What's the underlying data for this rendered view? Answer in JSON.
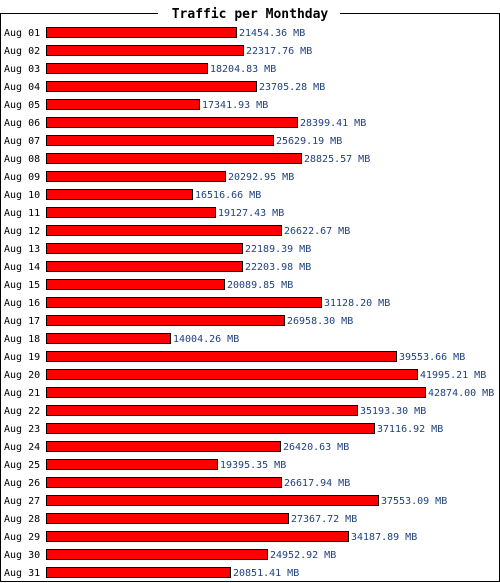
{
  "chart_data": {
    "type": "bar",
    "orientation": "horizontal",
    "title": "Traffic per Monthday",
    "unit": "MB",
    "bar_color": "#ff0000",
    "label_color": "#1f3f7f",
    "xlim": [
      0,
      42874.0
    ],
    "categories": [
      "Aug 01",
      "Aug 02",
      "Aug 03",
      "Aug 04",
      "Aug 05",
      "Aug 06",
      "Aug 07",
      "Aug 08",
      "Aug 09",
      "Aug 10",
      "Aug 11",
      "Aug 12",
      "Aug 13",
      "Aug 14",
      "Aug 15",
      "Aug 16",
      "Aug 17",
      "Aug 18",
      "Aug 19",
      "Aug 20",
      "Aug 21",
      "Aug 22",
      "Aug 23",
      "Aug 24",
      "Aug 25",
      "Aug 26",
      "Aug 27",
      "Aug 28",
      "Aug 29",
      "Aug 30",
      "Aug 31"
    ],
    "values": [
      21454.36,
      22317.76,
      18204.83,
      23705.28,
      17341.93,
      28399.41,
      25629.19,
      28825.57,
      20292.95,
      16516.66,
      19127.43,
      26622.67,
      22189.39,
      22203.98,
      20089.85,
      31128.2,
      26958.3,
      14004.26,
      39553.66,
      41995.21,
      42874.0,
      35193.3,
      37116.92,
      26420.63,
      19395.35,
      26617.94,
      37553.09,
      27367.72,
      34187.89,
      24952.92,
      20851.41
    ],
    "value_labels": [
      "21454.36 MB",
      "22317.76 MB",
      "18204.83 MB",
      "23705.28 MB",
      "17341.93 MB",
      "28399.41 MB",
      "25629.19 MB",
      "28825.57 MB",
      "20292.95 MB",
      "16516.66 MB",
      "19127.43 MB",
      "26622.67 MB",
      "22189.39 MB",
      "22203.98 MB",
      "20089.85 MB",
      "31128.20 MB",
      "26958.30 MB",
      "14004.26 MB",
      "39553.66 MB",
      "41995.21 MB",
      "42874.00 MB",
      "35193.30 MB",
      "37116.92 MB",
      "26420.63 MB",
      "19395.35 MB",
      "26617.94 MB",
      "37553.09 MB",
      "27367.72 MB",
      "34187.89 MB",
      "24952.92 MB",
      "20851.41 MB"
    ]
  }
}
